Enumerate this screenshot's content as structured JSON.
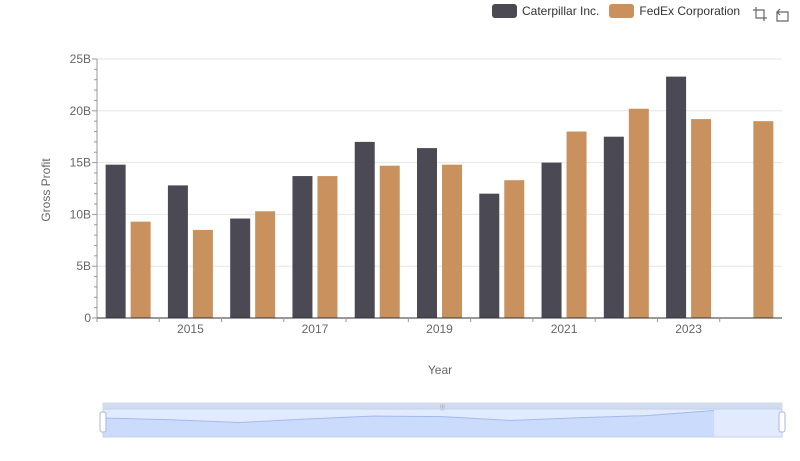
{
  "chart_data": {
    "type": "bar",
    "xlabel": "Year",
    "ylabel": "Gross Profit",
    "ylim": [
      0,
      25
    ],
    "y_tick_labels": [
      "0",
      "5B",
      "10B",
      "15B",
      "20B",
      "25B"
    ],
    "y_ticks": [
      0,
      5,
      10,
      15,
      20,
      25
    ],
    "categories": [
      "2014",
      "2015",
      "2016",
      "2017",
      "2018",
      "2019",
      "2020",
      "2021",
      "2022",
      "2023",
      "2024"
    ],
    "x_tick_labels_shown": [
      "2015",
      "2017",
      "2019",
      "2021",
      "2023"
    ],
    "series": [
      {
        "name": "Caterpillar Inc.",
        "color": "#4a4954",
        "values": [
          14.8,
          12.8,
          9.6,
          13.7,
          17.0,
          16.4,
          12.0,
          15.0,
          17.5,
          23.3,
          null
        ]
      },
      {
        "name": "FedEx Corporation",
        "color": "#c8915e",
        "values": [
          9.3,
          8.5,
          10.3,
          13.7,
          14.7,
          14.8,
          13.3,
          18.0,
          20.2,
          19.2,
          19.0
        ]
      }
    ],
    "grid": true,
    "legend_position": "top-right"
  },
  "legend": {
    "items": [
      {
        "label": "Caterpillar Inc.",
        "color": "#4a4954"
      },
      {
        "label": "FedEx Corporation",
        "color": "#c8915e"
      }
    ]
  },
  "toolbox": {
    "zoom_icon": "zoom-icon",
    "restore_icon": "restore-icon"
  },
  "slider": {
    "fill_color": "#e2ebfb",
    "handle_color": "#ffffff",
    "range_start_fraction": 0.0,
    "range_end_fraction": 1.0
  }
}
